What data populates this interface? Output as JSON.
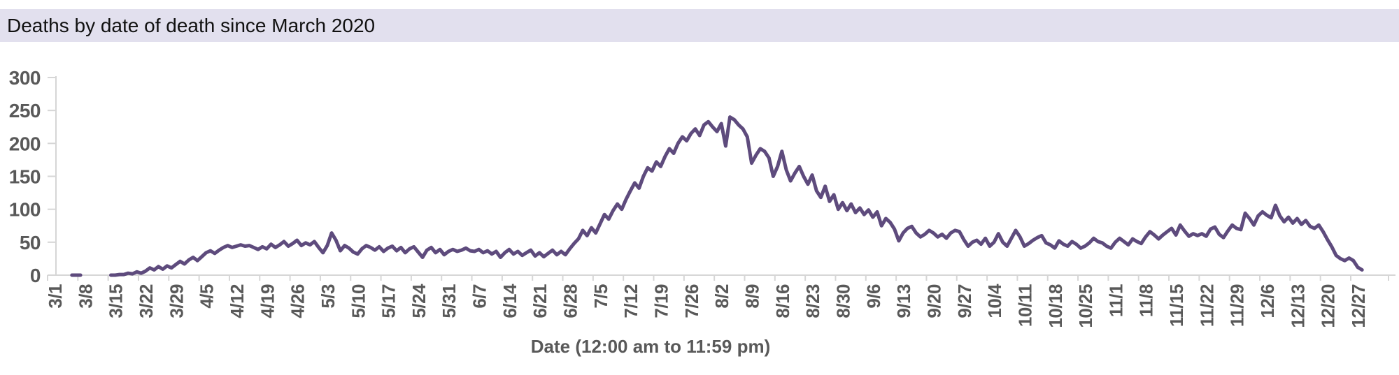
{
  "header": {
    "title": "Deaths by date of death since March 2020",
    "bar_color": "#e2e0ee",
    "text_color": "#111111"
  },
  "colors": {
    "line": "#5e4b7d",
    "axis": "#d6d6d6",
    "label_gray": "#595959",
    "plot_background": "#ffffff"
  },
  "chart_data": {
    "type": "line",
    "title": "Deaths by date of death since March 2020",
    "xlabel": "Date (12:00 am to 11:59 pm)",
    "ylabel": "",
    "ylim": [
      0,
      300
    ],
    "yticks": [
      0,
      50,
      100,
      150,
      200,
      250,
      300
    ],
    "grid": false,
    "legend": "none",
    "x_tick_labels": [
      "3/1",
      "3/8",
      "3/15",
      "3/22",
      "3/29",
      "4/5",
      "4/12",
      "4/19",
      "4/26",
      "5/3",
      "5/10",
      "5/17",
      "5/24",
      "5/31",
      "6/7",
      "6/14",
      "6/21",
      "6/28",
      "7/5",
      "7/12",
      "7/19",
      "7/26",
      "8/2",
      "8/9",
      "8/16",
      "8/23",
      "8/30",
      "9/6",
      "9/13",
      "9/20",
      "9/27",
      "10/4",
      "10/11",
      "10/18",
      "10/25",
      "11/1",
      "11/8",
      "11/15",
      "11/22",
      "11/29",
      "12/6",
      "12/13",
      "12/20",
      "12/27"
    ],
    "series": [
      {
        "name": "Deaths by date of death",
        "color": "#5e4b7d",
        "start_date": "3/1/2020",
        "frequency": "daily",
        "note": "null = no data (gap in line)",
        "values_by_month": [
          {
            "month": "March",
            "values": [
              null,
              null,
              null,
              null,
              0,
              0,
              0,
              null,
              null,
              null,
              null,
              null,
              null,
              0,
              0,
              1,
              1,
              3,
              2,
              5,
              3,
              6,
              11,
              8,
              13,
              9,
              14,
              11,
              16,
              21,
              17
            ]
          },
          {
            "month": "April",
            "values": [
              23,
              27,
              22,
              28,
              34,
              37,
              33,
              38,
              42,
              45,
              42,
              44,
              46,
              44,
              45,
              42,
              39,
              43,
              40,
              47,
              42,
              46,
              51,
              44,
              48,
              53,
              45,
              49,
              46,
              51
            ]
          },
          {
            "month": "May",
            "values": [
              42,
              34,
              45,
              64,
              53,
              37,
              45,
              41,
              35,
              32,
              40,
              45,
              42,
              38,
              43,
              36,
              41,
              44,
              37,
              42,
              34,
              40,
              43,
              35,
              27,
              38,
              42,
              34,
              39,
              31,
              36
            ]
          },
          {
            "month": "June",
            "values": [
              39,
              36,
              38,
              41,
              37,
              36,
              39,
              34,
              37,
              32,
              36,
              27,
              34,
              39,
              32,
              36,
              30,
              34,
              38,
              29,
              34,
              28,
              33,
              38,
              31,
              36,
              31,
              40,
              48,
              55
            ]
          },
          {
            "month": "July",
            "values": [
              68,
              60,
              72,
              64,
              78,
              92,
              85,
              98,
              108,
              100,
              115,
              128,
              140,
              132,
              150,
              163,
              158,
              172,
              165,
              180,
              192,
              185,
              200,
              210,
              204,
              215,
              222,
              212,
              228,
              233,
              225
            ]
          },
          {
            "month": "August",
            "values": [
              218,
              230,
              196,
              240,
              236,
              228,
              222,
              210,
              170,
              182,
              192,
              188,
              178,
              150,
              165,
              188,
              160,
              143,
              155,
              165,
              150,
              138,
              152,
              128,
              118,
              135,
              112,
              122,
              100,
              110,
              98
            ]
          },
          {
            "month": "September",
            "values": [
              108,
              95,
              102,
              92,
              99,
              88,
              96,
              75,
              86,
              80,
              70,
              52,
              64,
              71,
              74,
              64,
              58,
              62,
              68,
              64,
              58,
              62,
              56,
              64,
              68,
              66,
              54,
              44,
              50,
              53
            ]
          },
          {
            "month": "October",
            "values": [
              47,
              56,
              44,
              50,
              63,
              50,
              44,
              56,
              68,
              58,
              44,
              48,
              53,
              57,
              60,
              49,
              46,
              41,
              52,
              47,
              44,
              51,
              47,
              41,
              44,
              49,
              56,
              51,
              49,
              44,
              41
            ]
          },
          {
            "month": "November",
            "values": [
              50,
              56,
              51,
              46,
              55,
              51,
              48,
              58,
              66,
              61,
              55,
              61,
              66,
              71,
              61,
              76,
              67,
              59,
              63,
              60,
              63,
              59,
              70,
              73,
              62,
              57,
              67,
              76,
              71,
              69
            ]
          },
          {
            "month": "December",
            "values": [
              94,
              86,
              76,
              90,
              96,
              91,
              87,
              106,
              90,
              81,
              88,
              79,
              86,
              77,
              83,
              74,
              71,
              76,
              66,
              54,
              43,
              30,
              25,
              22,
              26,
              22,
              12,
              8
            ]
          }
        ]
      }
    ]
  }
}
